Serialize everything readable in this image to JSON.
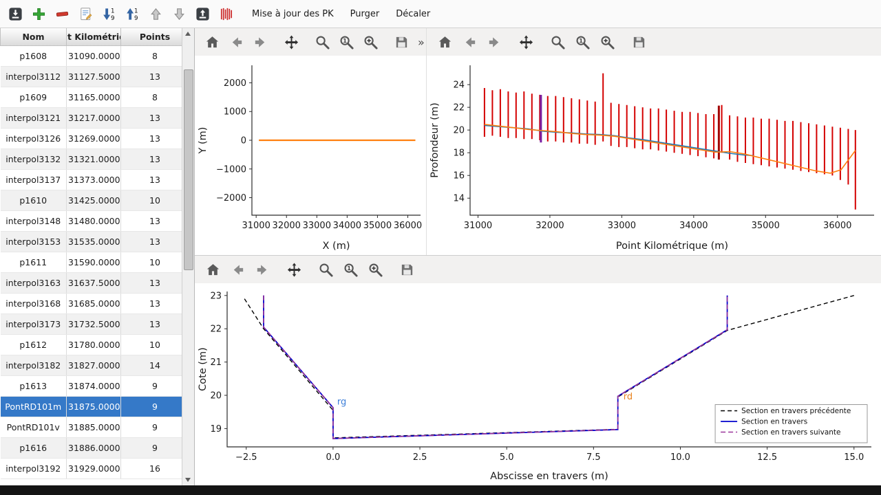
{
  "toolbar": {
    "icons": [
      "import",
      "add",
      "remove",
      "edit",
      "sort-asc",
      "sort-desc",
      "up",
      "down",
      "export",
      "stripes"
    ],
    "menus": [
      "Mise à jour des PK",
      "Purger",
      "Décaler"
    ]
  },
  "nav": {
    "icons": [
      "home",
      "back",
      "forward",
      "pan",
      "zoom",
      "zoom-one",
      "zoom-plus",
      "save"
    ],
    "overflow": "»"
  },
  "table": {
    "columns": [
      "Nom",
      "t Kilométriqu",
      "Points"
    ],
    "selected_row": "PontRD101m",
    "rows": [
      {
        "nom": "p1608",
        "pk": "31090.0000",
        "points": "8"
      },
      {
        "nom": "interpol3112",
        "pk": "31127.5000",
        "points": "13"
      },
      {
        "nom": "p1609",
        "pk": "31165.0000",
        "points": "8"
      },
      {
        "nom": "interpol3121",
        "pk": "31217.0000",
        "points": "13"
      },
      {
        "nom": "interpol3126",
        "pk": "31269.0000",
        "points": "13"
      },
      {
        "nom": "interpol3132",
        "pk": "31321.0000",
        "points": "13"
      },
      {
        "nom": "interpol3137",
        "pk": "31373.0000",
        "points": "13"
      },
      {
        "nom": "p1610",
        "pk": "31425.0000",
        "points": "10"
      },
      {
        "nom": "interpol3148",
        "pk": "31480.0000",
        "points": "13"
      },
      {
        "nom": "interpol3153",
        "pk": "31535.0000",
        "points": "13"
      },
      {
        "nom": "p1611",
        "pk": "31590.0000",
        "points": "10"
      },
      {
        "nom": "interpol3163",
        "pk": "31637.5000",
        "points": "13"
      },
      {
        "nom": "interpol3168",
        "pk": "31685.0000",
        "points": "13"
      },
      {
        "nom": "interpol3173",
        "pk": "31732.5000",
        "points": "13"
      },
      {
        "nom": "p1612",
        "pk": "31780.0000",
        "points": "10"
      },
      {
        "nom": "interpol3182",
        "pk": "31827.0000",
        "points": "14"
      },
      {
        "nom": "p1613",
        "pk": "31874.0000",
        "points": "9"
      },
      {
        "nom": "PontRD101m",
        "pk": "31875.0000",
        "points": "9"
      },
      {
        "nom": "PontRD101v",
        "pk": "31885.0000",
        "points": "9"
      },
      {
        "nom": "p1616",
        "pk": "31886.0000",
        "points": "9"
      },
      {
        "nom": "interpol3192",
        "pk": "31929.0000",
        "points": "16"
      }
    ]
  },
  "chart_data": [
    {
      "id": "plan",
      "type": "line",
      "xlabel": "X (m)",
      "ylabel": "Y (m)",
      "xlim": [
        30860,
        36420
      ],
      "ylim": [
        -2610,
        2610
      ],
      "xticks": [
        31000,
        32000,
        33000,
        34000,
        35000,
        36000
      ],
      "xtick_labels": [
        "31000",
        "32000",
        "33000",
        "34000",
        "35000",
        "36000"
      ],
      "yticks": [
        -2000,
        -1000,
        0,
        1000,
        2000
      ],
      "ytick_labels": [
        "−2000",
        "−1000",
        "0",
        "1000",
        "2000"
      ],
      "margins": {
        "l": 83,
        "r": 8,
        "t": 14,
        "b": 58
      },
      "series": [
        {
          "name": "axe-hydraulique",
          "color": "#ff7f0e",
          "width": 2.2,
          "x": [
            31090,
            36250
          ],
          "y": [
            0,
            0
          ]
        }
      ]
    },
    {
      "id": "profil",
      "type": "line",
      "xlabel": "Point Kilométrique (m)",
      "ylabel": "Profondeur (m)",
      "xlim": [
        30890,
        36510
      ],
      "ylim": [
        12.5,
        25.7
      ],
      "xticks": [
        31000,
        32000,
        33000,
        34000,
        35000,
        36000
      ],
      "xtick_labels": [
        "31000",
        "32000",
        "33000",
        "34000",
        "35000",
        "36000"
      ],
      "yticks": [
        14,
        16,
        18,
        20,
        22,
        24
      ],
      "ytick_labels": [
        "14",
        "16",
        "18",
        "20",
        "22",
        "24"
      ],
      "margins": {
        "l": 63,
        "r": 10,
        "t": 14,
        "b": 58
      },
      "bars": {
        "color": "#d40000",
        "x": [
          31090,
          31200,
          31310,
          31420,
          31530,
          31640,
          31750,
          31860,
          31970,
          32080,
          32190,
          32300,
          32410,
          32520,
          32630,
          32740,
          32850,
          32960,
          33070,
          33180,
          33290,
          33400,
          33510,
          33620,
          33730,
          33840,
          33950,
          34060,
          34170,
          34280,
          34390,
          34500,
          34610,
          34720,
          34830,
          34940,
          35050,
          35160,
          35270,
          35380,
          35490,
          35600,
          35710,
          35820,
          35930,
          36040,
          36150,
          36250
        ],
        "top": [
          23.7,
          23.5,
          23.6,
          23.4,
          23.3,
          23.4,
          23.2,
          23.1,
          23.0,
          23.0,
          22.9,
          22.8,
          22.7,
          22.6,
          22.5,
          25.0,
          22.4,
          22.3,
          22.2,
          22.1,
          22.0,
          21.9,
          21.9,
          21.8,
          21.7,
          21.6,
          21.6,
          21.5,
          21.4,
          21.4,
          22.2,
          21.3,
          21.2,
          21.1,
          21.1,
          21.0,
          21.0,
          20.9,
          20.8,
          20.8,
          20.7,
          20.6,
          20.5,
          20.4,
          20.3,
          20.2,
          20.1,
          20.0
        ],
        "bottom": [
          19.4,
          19.5,
          19.4,
          19.3,
          19.3,
          19.2,
          19.2,
          19.1,
          19.0,
          19.0,
          18.9,
          18.9,
          18.8,
          18.8,
          18.7,
          19.0,
          18.6,
          18.5,
          18.5,
          18.4,
          18.3,
          18.3,
          18.2,
          18.1,
          18.0,
          17.9,
          17.8,
          17.7,
          17.6,
          17.5,
          18.0,
          17.4,
          17.2,
          17.1,
          17.0,
          16.9,
          16.8,
          16.7,
          16.6,
          16.5,
          16.4,
          16.3,
          16.2,
          16.1,
          16.0,
          15.6,
          15.2,
          13.0
        ]
      },
      "highlight_bars": [
        {
          "x": 31875,
          "top": 23.1,
          "bottom": 18.9,
          "color": "#7a1fa2",
          "width": 3
        },
        {
          "x": 34350,
          "top": 22.15,
          "bottom": 17.4,
          "color": "#a30000",
          "width": 3
        }
      ],
      "series": [
        {
          "name": "fond-section",
          "color": "#1f77b4",
          "width": 1.6,
          "x": [
            31090,
            31300,
            31500,
            31700,
            31900,
            32100,
            32300,
            32500,
            32700,
            32900,
            33100,
            33300,
            33500,
            33700,
            33900,
            34100,
            34300,
            34500,
            34700,
            34830
          ],
          "y": [
            20.4,
            20.3,
            20.2,
            20.1,
            19.9,
            19.8,
            19.75,
            19.65,
            19.6,
            19.5,
            19.3,
            19.15,
            18.95,
            18.75,
            18.55,
            18.35,
            18.15,
            17.95,
            17.8,
            17.75
          ]
        },
        {
          "name": "fond-lisse",
          "color": "#ff7f0e",
          "width": 1.6,
          "x": [
            31090,
            31300,
            31500,
            31700,
            31900,
            32100,
            32300,
            32500,
            32700,
            32900,
            33100,
            33300,
            33500,
            33700,
            33900,
            34100,
            34300,
            34500,
            34700,
            34900,
            35100,
            35300,
            35500,
            35700,
            35900,
            36050,
            36250
          ],
          "y": [
            20.5,
            20.35,
            20.2,
            20.05,
            19.95,
            19.85,
            19.7,
            19.6,
            19.55,
            19.45,
            19.25,
            19.05,
            18.85,
            18.65,
            18.45,
            18.25,
            18.05,
            18.1,
            17.9,
            17.6,
            17.3,
            17.0,
            16.7,
            16.4,
            16.2,
            16.5,
            18.2
          ]
        }
      ]
    },
    {
      "id": "section",
      "type": "line",
      "xlabel": "Abscisse en travers (m)",
      "ylabel": "Cote (m)",
      "xlim": [
        -3.05,
        15.5
      ],
      "ylim": [
        18.45,
        23.12
      ],
      "xticks": [
        -2.5,
        0.0,
        2.5,
        5.0,
        7.5,
        10.0,
        12.5,
        15.0
      ],
      "xtick_labels": [
        "−2.5",
        "0.0",
        "2.5",
        "5.0",
        "7.5",
        "10.0",
        "12.5",
        "15.0"
      ],
      "yticks": [
        19,
        20,
        21,
        22,
        23
      ],
      "ytick_labels": [
        "19",
        "20",
        "21",
        "22",
        "23"
      ],
      "margins": {
        "l": 47,
        "r": 14,
        "t": 12,
        "b": 56
      },
      "legend": true,
      "series": [
        {
          "name": "Section en travers précédente",
          "color": "#000000",
          "width": 1.4,
          "dash": "6,4",
          "x": [
            -2.55,
            -2.0,
            0.0,
            0.0,
            8.2,
            8.2,
            11.35,
            15.0
          ],
          "y": [
            22.9,
            22.0,
            19.55,
            18.72,
            18.98,
            19.95,
            21.95,
            23.0
          ]
        },
        {
          "name": "Section en travers",
          "color": "#0000cc",
          "width": 1.8,
          "x": [
            -2.0,
            -2.0,
            0.0,
            0.0,
            8.2,
            8.2,
            11.35,
            11.35
          ],
          "y": [
            23.0,
            22.05,
            19.63,
            18.7,
            18.97,
            19.97,
            21.97,
            23.0
          ]
        },
        {
          "name": "Section en travers suivante",
          "color": "#993399",
          "width": 1.6,
          "dash": "7,4",
          "x": [
            -2.0,
            -2.0,
            0.0,
            0.0,
            8.2,
            8.2,
            11.35,
            11.35
          ],
          "y": [
            23.0,
            22.05,
            19.63,
            18.7,
            18.97,
            19.97,
            21.97,
            23.0
          ]
        }
      ],
      "annotations": [
        {
          "text": "rg",
          "x": 0.08,
          "y": 19.72,
          "color": "#3b7dd8"
        },
        {
          "text": "rd",
          "x": 8.32,
          "y": 19.88,
          "color": "#e8821e"
        }
      ]
    }
  ]
}
